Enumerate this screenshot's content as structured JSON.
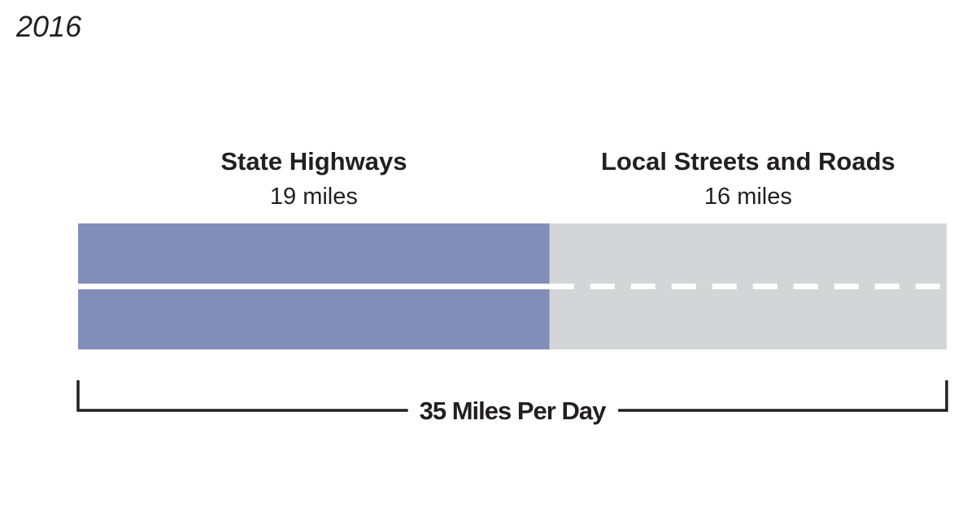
{
  "chart_data": {
    "type": "stacked-bar",
    "title": "2016",
    "series": [
      {
        "name": "State Highways",
        "color": "#838dba",
        "values": [
          19
        ],
        "value_labels": [
          "19 miles"
        ]
      },
      {
        "name": "Local Streets and Roads",
        "color": "#d4d5d7",
        "values": [
          16
        ],
        "value_labels": [
          "16 miles"
        ]
      }
    ],
    "total_label": "35 Miles Per Day"
  }
}
